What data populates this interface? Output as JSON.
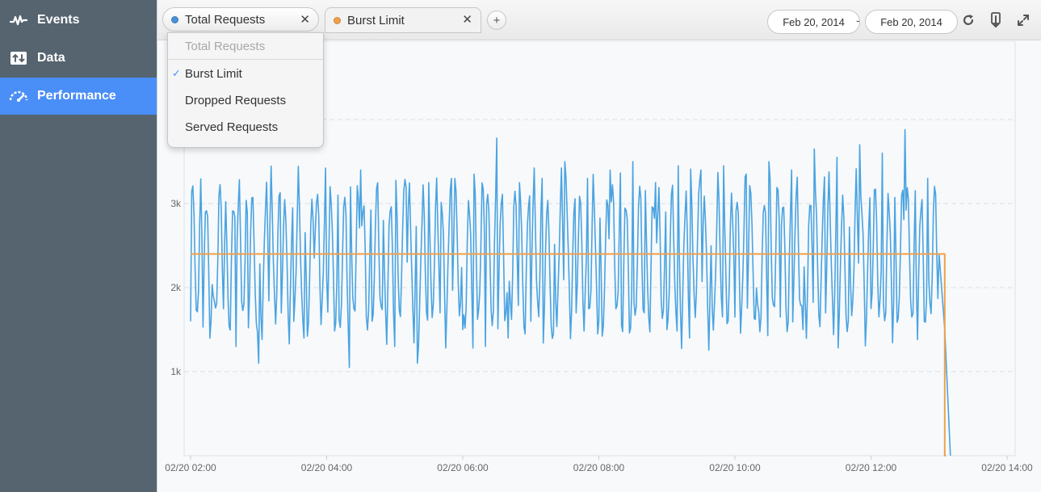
{
  "sidebar": {
    "items": [
      {
        "label": "Events",
        "icon": "activity-icon"
      },
      {
        "label": "Data",
        "icon": "data-transfer-icon"
      },
      {
        "label": "Performance",
        "icon": "speedometer-icon",
        "active": true
      }
    ]
  },
  "toolbar": {
    "tabs": [
      {
        "label": "Total Requests",
        "color": "#4a90d9"
      },
      {
        "label": "Burst Limit",
        "color": "#f0a04b"
      }
    ],
    "add_label": "+",
    "close_glyph": "✕",
    "date_start": "Feb 20, 2014",
    "date_separator": "-",
    "date_end": "Feb 20, 2014"
  },
  "dropdown": {
    "items": [
      {
        "label": "Total Requests",
        "disabled": true
      },
      {
        "label": "Burst Limit",
        "checked": true
      },
      {
        "label": "Dropped Requests"
      },
      {
        "label": "Served Requests"
      }
    ],
    "check_glyph": "✓"
  },
  "chart_data": {
    "type": "line",
    "title": "",
    "xlabel": "",
    "ylabel": "",
    "x_ticks": [
      "02/20 02:00",
      "02/20 04:00",
      "02/20 06:00",
      "02/20 08:00",
      "02/20 10:00",
      "02/20 12:00",
      "02/20 14:00"
    ],
    "y_ticks": [
      "1k",
      "2k",
      "3k",
      "4k"
    ],
    "xlim": [
      "02/20 02:00",
      "02/20 14:00"
    ],
    "ylim": [
      0,
      4500
    ],
    "grid": true,
    "series": [
      {
        "name": "Total Requests",
        "color": "#4aa3e0",
        "x": [
          "02/20 02:00",
          "02/20 02:10",
          "02/20 02:20",
          "02/20 02:30",
          "02/20 02:40",
          "02/20 02:50",
          "02/20 03:00",
          "02/20 03:10",
          "02/20 03:20",
          "02/20 03:30",
          "02/20 03:40",
          "02/20 03:50",
          "02/20 04:00",
          "02/20 04:10",
          "02/20 04:20",
          "02/20 04:30",
          "02/20 04:40",
          "02/20 04:50",
          "02/20 05:00",
          "02/20 05:10",
          "02/20 05:20",
          "02/20 05:30",
          "02/20 05:40",
          "02/20 05:50",
          "02/20 06:00",
          "02/20 06:10",
          "02/20 06:20",
          "02/20 06:30",
          "02/20 06:40",
          "02/20 06:50",
          "02/20 07:00",
          "02/20 07:10",
          "02/20 07:20",
          "02/20 07:30",
          "02/20 07:40",
          "02/20 07:50",
          "02/20 08:00",
          "02/20 08:10",
          "02/20 08:20",
          "02/20 08:30",
          "02/20 08:40",
          "02/20 08:50",
          "02/20 09:00",
          "02/20 09:10",
          "02/20 09:20",
          "02/20 09:30",
          "02/20 09:40",
          "02/20 09:50",
          "02/20 10:00",
          "02/20 10:10",
          "02/20 10:20",
          "02/20 10:30",
          "02/20 10:40",
          "02/20 10:50",
          "02/20 11:00",
          "02/20 11:10",
          "02/20 11:20",
          "02/20 11:30",
          "02/20 11:40",
          "02/20 11:50",
          "02/20 12:00",
          "02/20 12:10",
          "02/20 12:20",
          "02/20 12:30",
          "02/20 12:40",
          "02/20 12:50",
          "02/20 13:00",
          "02/20 13:05",
          "02/20 13:10"
        ],
        "values": [
          1600,
          2600,
          1900,
          2500,
          1300,
          2900,
          1100,
          2800,
          1700,
          2950,
          1400,
          2700,
          2100,
          3100,
          1050,
          3400,
          1600,
          2800,
          1300,
          3200,
          1100,
          3250,
          1700,
          3300,
          1500,
          3350,
          1300,
          3780,
          1400,
          3250,
          1600,
          3300,
          1450,
          3500,
          1700,
          3300,
          1600,
          3400,
          1550,
          3500,
          1700,
          3250,
          1500,
          3450,
          1400,
          3400,
          1750,
          3450,
          1650,
          3350,
          1800,
          3500,
          1650,
          3400,
          1500,
          3650,
          1700,
          3550,
          1600,
          3700,
          1750,
          3600,
          1850,
          3880,
          2000,
          3300,
          2400,
          1500,
          0
        ]
      },
      {
        "name": "Burst Limit",
        "color": "#f0a04b",
        "x": [
          "02/20 02:00",
          "02/20 13:05",
          "02/20 13:05",
          "02/20 13:06"
        ],
        "values": [
          2400,
          2400,
          0,
          0
        ]
      }
    ]
  },
  "colors": {
    "sidebar_bg": "#56646f",
    "accent": "#4a8ef7",
    "series_total": "#4aa3e0",
    "series_burst": "#f0a04b"
  }
}
